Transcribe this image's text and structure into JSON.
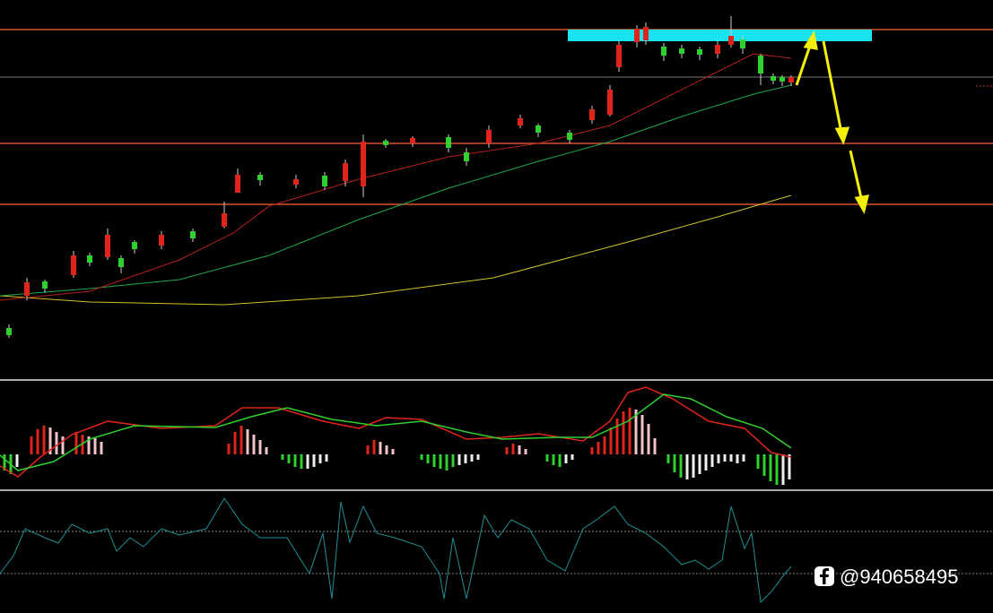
{
  "watermark": {
    "handle": "@940658495"
  }
}
